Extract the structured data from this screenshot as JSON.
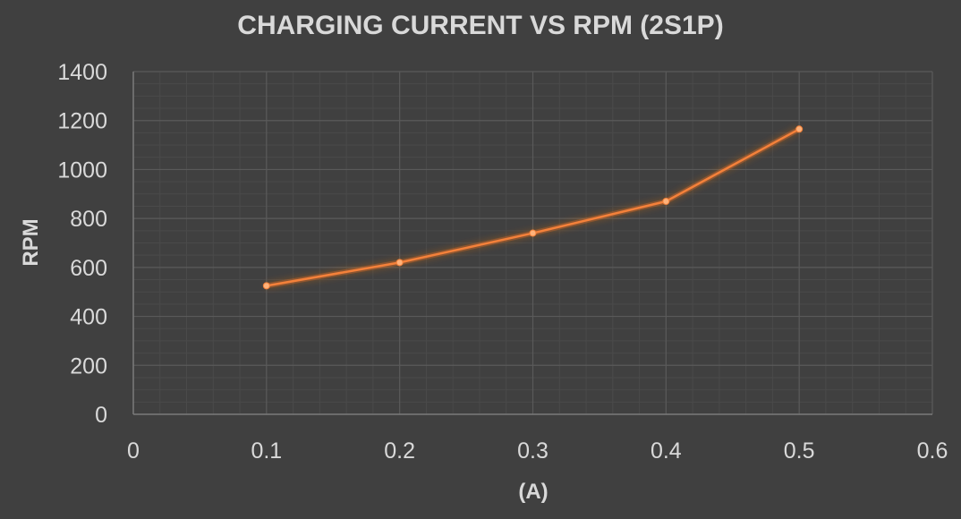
{
  "chart_data": {
    "type": "scatter",
    "mode": "lines+markers",
    "title": "CHARGING CURRENT VS RPM (2S1P)",
    "xlabel": "(A)",
    "ylabel": "RPM",
    "xlim": [
      0,
      0.6
    ],
    "ylim": [
      0,
      1400
    ],
    "x_ticks": [
      "0",
      "0.1",
      "0.2",
      "0.3",
      "0.4",
      "0.5",
      "0.6"
    ],
    "y_ticks": [
      "0",
      "200",
      "400",
      "600",
      "800",
      "1000",
      "1200",
      "1400"
    ],
    "grid": true,
    "legend": "none",
    "series": [
      {
        "x": [
          0.1,
          0.2,
          0.3,
          0.4,
          0.5
        ],
        "y": [
          525,
          620,
          740,
          870,
          1165
        ]
      }
    ],
    "colors": {
      "background": "#404040",
      "line": "#f4813a",
      "glow": "#e36c1e",
      "grid_major": "#5a5a5a",
      "grid_minor": "#4a4a4a",
      "text": "#d9d9d9"
    }
  }
}
